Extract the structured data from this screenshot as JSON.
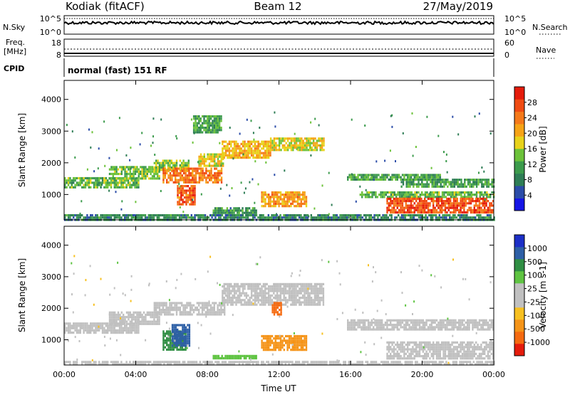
{
  "header": {
    "station": "Kodiak (fitACF)",
    "beam": "Beam 12",
    "date": "27/May/2019"
  },
  "top_panels": {
    "nsky_label": "N.Sky",
    "nsky_ticks": [
      "10^5",
      "10^0"
    ],
    "nsearch_label": "N.Search",
    "nsearch_ticks": [
      "10^5",
      "10^0"
    ],
    "freq_label_1": "Freq.",
    "freq_label_2": "[MHz]",
    "freq_ticks": [
      "18",
      "8"
    ],
    "nave_label": "Nave",
    "nave_ticks": [
      "60",
      "0"
    ],
    "cpid_label": "CPID",
    "cpid_value": "normal (fast) 151 RF"
  },
  "colors": {
    "power": [
      "#1515e6",
      "#2b4ca8",
      "#2e7d55",
      "#3c9b4c",
      "#6cc23a",
      "#e8d21a",
      "#f6a316",
      "#f5791a",
      "#f04b12",
      "#e51b0b"
    ],
    "velocity": [
      "#e51b0b",
      "#f56a10",
      "#f59418",
      "#f7c020",
      "#c0c0c0",
      "#c0c0c0",
      "#5fc442",
      "#2f8e43",
      "#2d5fa6",
      "#1c2fc7"
    ]
  },
  "chart_data": [
    {
      "type": "heatmap",
      "name": "power",
      "ylabel": "Slant Range [km]",
      "ylim": [
        200,
        4600
      ],
      "yticks": [
        "1000",
        "2000",
        "3000",
        "4000"
      ],
      "xlim": [
        0,
        24
      ],
      "colorbar_label": "Power [dB]",
      "colorbar_range": [
        0,
        32
      ],
      "colorbar_ticks": [
        "4",
        "8",
        "12",
        "16",
        "20",
        "24",
        "28"
      ],
      "regions": [
        {
          "t0": 0,
          "t1": 4.2,
          "r0": 1200,
          "r1": 1550,
          "value": 13
        },
        {
          "t0": 2.5,
          "t1": 5.3,
          "r0": 1500,
          "r1": 1900,
          "value": 14
        },
        {
          "t0": 5.0,
          "t1": 7.0,
          "r0": 1800,
          "r1": 2100,
          "value": 15
        },
        {
          "t0": 5.5,
          "t1": 8.8,
          "r0": 1350,
          "r1": 1850,
          "value": 24
        },
        {
          "t0": 6.3,
          "t1": 7.3,
          "r0": 700,
          "r1": 1300,
          "value": 26
        },
        {
          "t0": 7.5,
          "t1": 8.9,
          "r0": 1900,
          "r1": 2300,
          "value": 18
        },
        {
          "t0": 8.8,
          "t1": 11.5,
          "r0": 2150,
          "r1": 2700,
          "value": 20
        },
        {
          "t0": 11.5,
          "t1": 14.5,
          "r0": 2400,
          "r1": 2800,
          "value": 17
        },
        {
          "t0": 7.2,
          "t1": 8.8,
          "r0": 2950,
          "r1": 3500,
          "value": 12
        },
        {
          "t0": 11.0,
          "t1": 13.5,
          "r0": 650,
          "r1": 1100,
          "value": 22
        },
        {
          "t0": 8.3,
          "t1": 10.7,
          "r0": 350,
          "r1": 600,
          "value": 10
        },
        {
          "t0": 15.8,
          "t1": 21.0,
          "r0": 1450,
          "r1": 1650,
          "value": 12
        },
        {
          "t0": 18.8,
          "t1": 24,
          "r0": 1250,
          "r1": 1500,
          "value": 11
        },
        {
          "t0": 16.5,
          "t1": 24,
          "r0": 900,
          "r1": 1100,
          "value": 13
        },
        {
          "t0": 18.0,
          "t1": 24,
          "r0": 400,
          "r1": 900,
          "value": 27
        },
        {
          "t0": 0,
          "t1": 24,
          "r0": 220,
          "r1": 380,
          "value": 9
        }
      ]
    },
    {
      "type": "heatmap",
      "name": "velocity",
      "ylabel": "Slant Range [km]",
      "ylim": [
        200,
        4600
      ],
      "yticks": [
        "1000",
        "2000",
        "3000",
        "4000"
      ],
      "xlim": [
        0,
        24
      ],
      "xticks": [
        "00:00",
        "04:00",
        "08:00",
        "12:00",
        "16:00",
        "20:00",
        "00:00"
      ],
      "xlabel": "Time UT",
      "colorbar_label": "Velocity [m s-1]",
      "colorbar_ticks": [
        "1000",
        "500",
        "100",
        "25",
        "-25",
        "-100",
        "-500",
        "-1000"
      ],
      "regions": [
        {
          "t0": 0,
          "t1": 4.2,
          "r0": 1200,
          "r1": 1550,
          "value": 0
        },
        {
          "t0": 2.5,
          "t1": 5.3,
          "r0": 1500,
          "r1": 1900,
          "value": 0
        },
        {
          "t0": 5.0,
          "t1": 9.0,
          "r0": 1800,
          "r1": 2200,
          "value": 0
        },
        {
          "t0": 5.5,
          "t1": 6.8,
          "r0": 700,
          "r1": 1300,
          "value": 150
        },
        {
          "t0": 6.0,
          "t1": 7.0,
          "r0": 800,
          "r1": 1500,
          "value": 700
        },
        {
          "t0": 8.8,
          "t1": 14.5,
          "r0": 2150,
          "r1": 2800,
          "value": 0
        },
        {
          "t0": 11.0,
          "t1": 13.5,
          "r0": 700,
          "r1": 1150,
          "value": -150
        },
        {
          "t0": 11.6,
          "t1": 12.1,
          "r0": 1800,
          "r1": 2200,
          "value": -700
        },
        {
          "t0": 8.3,
          "t1": 10.7,
          "r0": 380,
          "r1": 520,
          "value": 80
        },
        {
          "t0": 15.8,
          "t1": 24,
          "r0": 1300,
          "r1": 1650,
          "value": 0
        },
        {
          "t0": 18.0,
          "t1": 24,
          "r0": 400,
          "r1": 950,
          "value": 0
        },
        {
          "t0": 0,
          "t1": 24,
          "r0": 220,
          "r1": 330,
          "value": 0
        }
      ]
    }
  ]
}
